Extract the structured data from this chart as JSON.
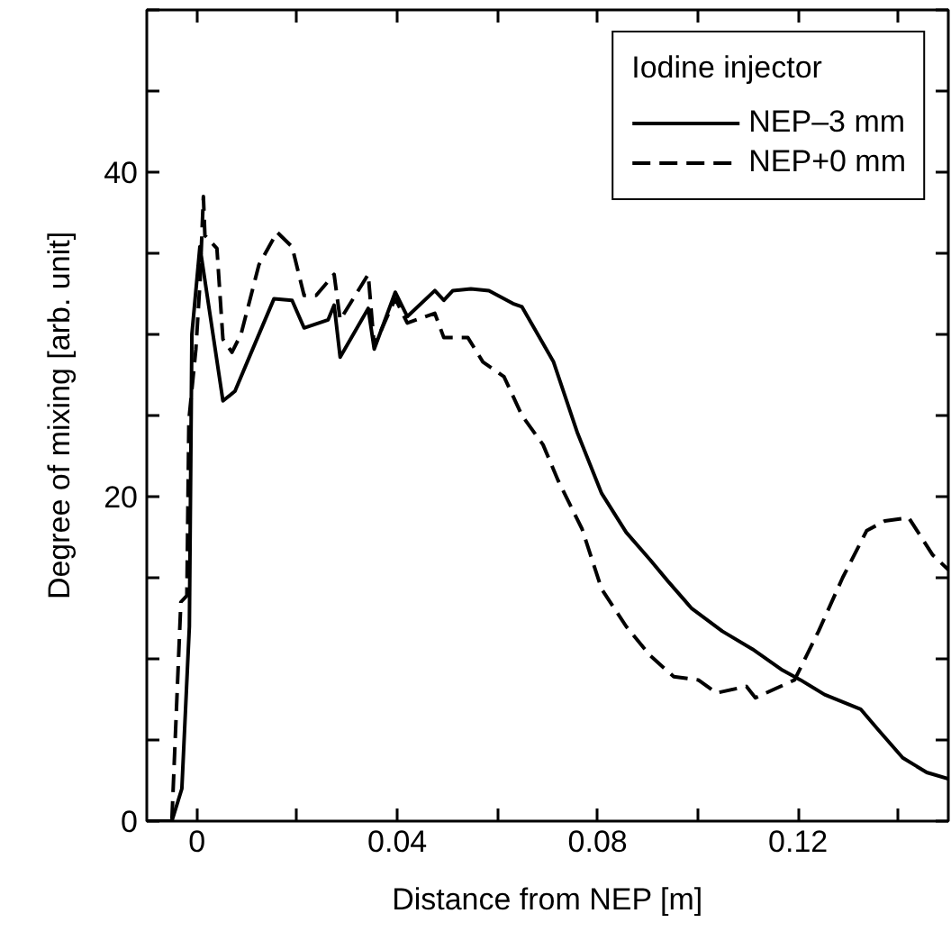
{
  "chart_data": {
    "type": "line",
    "xlabel": "Distance from NEP [m]",
    "ylabel": "Degree of mixing [arb. unit]",
    "legend_title": "Iodine injector",
    "legend": "top right",
    "grid": false,
    "xlim": [
      -0.01,
      0.15
    ],
    "ylim": [
      0,
      50
    ],
    "xticks": [
      0,
      {
        "value": 0.02,
        "label": null
      },
      0.04,
      {
        "value": 0.06,
        "label": null
      },
      0.08,
      {
        "value": 0.1,
        "label": null
      },
      0.12,
      {
        "value": 0.14,
        "label": null
      }
    ],
    "yticks": [
      0,
      {
        "value": 5,
        "label": null
      },
      {
        "value": 10,
        "label": null
      },
      {
        "value": 15,
        "label": null
      },
      20,
      {
        "value": 25,
        "label": null
      },
      {
        "value": 30,
        "label": null
      },
      {
        "value": 35,
        "label": null
      },
      40,
      {
        "value": 45,
        "label": null
      },
      {
        "value": 50,
        "label": null
      }
    ],
    "series": [
      {
        "name": "NEP–3 mm",
        "color": "#000000",
        "line_style": "solid",
        "x": [
          -0.01,
          -0.005,
          -0.003,
          -0.0015,
          -0.001,
          0.0006,
          0.0052,
          0.0076,
          0.0106,
          0.0154,
          0.019,
          0.0214,
          0.0262,
          0.0274,
          0.0286,
          0.0342,
          0.0354,
          0.0396,
          0.042,
          0.0475,
          0.0493,
          0.0511,
          0.0547,
          0.0583,
          0.0631,
          0.0649,
          0.0688,
          0.0712,
          0.076,
          0.0808,
          0.0857,
          0.0905,
          0.094,
          0.0988,
          0.1049,
          0.1109,
          0.1169,
          0.1205,
          0.1253,
          0.1325,
          0.1361,
          0.1409,
          0.1457,
          0.15
        ],
        "values": [
          0,
          0,
          2,
          12,
          30,
          35.4,
          25.9,
          26.5,
          28.7,
          32.2,
          32.1,
          30.4,
          30.9,
          31.8,
          28.6,
          31.6,
          29.1,
          32.6,
          31.1,
          32.7,
          32.1,
          32.7,
          32.8,
          32.7,
          31.9,
          31.7,
          29.6,
          28.3,
          23.9,
          20.2,
          17.8,
          16.1,
          14.8,
          13.1,
          11.7,
          10.6,
          9.3,
          8.7,
          7.8,
          6.9,
          5.6,
          3.9,
          3.0,
          2.6
        ]
      },
      {
        "name": "NEP+0 mm",
        "color": "#000000",
        "line_style": "dashed",
        "x": [
          -0.01,
          -0.005,
          -0.0032,
          -0.002,
          -0.0016,
          -0.0002,
          0.0006,
          0.0013,
          0.0016,
          0.0028,
          0.004,
          0.0052,
          0.007,
          0.0088,
          0.0124,
          0.016,
          0.019,
          0.0214,
          0.0238,
          0.0274,
          0.0286,
          0.0342,
          0.0354,
          0.0396,
          0.042,
          0.0475,
          0.0493,
          0.0541,
          0.0571,
          0.0613,
          0.0649,
          0.0691,
          0.0721,
          0.0769,
          0.0808,
          0.0857,
          0.0905,
          0.0952,
          0.1001,
          0.1037,
          0.1097,
          0.1115,
          0.1193,
          0.1241,
          0.1289,
          0.1337,
          0.1373,
          0.1421,
          0.1469,
          0.15
        ],
        "values": [
          0,
          0,
          13.5,
          13.9,
          24.7,
          29.1,
          33.1,
          38.5,
          36.1,
          35.7,
          35.3,
          29.7,
          28.9,
          30.0,
          34.3,
          36.3,
          35.4,
          32.4,
          32.4,
          33.7,
          30.9,
          33.7,
          29.3,
          32.2,
          30.7,
          31.3,
          29.8,
          29.8,
          28.3,
          27.4,
          25.0,
          23.2,
          21.0,
          18.0,
          14.3,
          12.0,
          10.2,
          8.9,
          8.7,
          7.9,
          8.3,
          7.6,
          8.7,
          11.7,
          15.0,
          17.9,
          18.5,
          18.7,
          16.4,
          15.5
        ]
      }
    ]
  }
}
